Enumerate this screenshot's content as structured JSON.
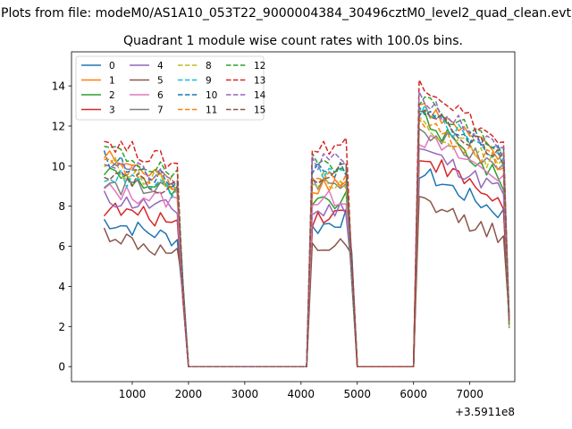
{
  "figure": {
    "suptitle": "Plots from file: modeM0/AS1A10_053T22_9000004384_30496cztM0_level2_quad_clean.evt",
    "x_offset_label": "+3.5911e8"
  },
  "chart_data": {
    "type": "line",
    "title": "Quadrant 1 module wise count rates with 100.0s bins.",
    "xlabel": "",
    "ylabel": "",
    "x_offset": 359110000,
    "xlim": [
      -80,
      7800
    ],
    "ylim": [
      -0.75,
      15.7
    ],
    "xticks": [
      1000,
      2000,
      3000,
      4000,
      5000,
      6000,
      7000
    ],
    "xtick_labels": [
      "1000",
      "2000",
      "3000",
      "4000",
      "5000",
      "6000",
      "7000"
    ],
    "yticks": [
      0,
      2,
      4,
      6,
      8,
      10,
      12,
      14
    ],
    "ytick_labels": [
      "0",
      "2",
      "4",
      "6",
      "8",
      "10",
      "12",
      "14"
    ],
    "legend_position": "top-left",
    "legend_columns": 4,
    "segments": [
      {
        "start": 500,
        "end": 1850,
        "drop_to": 3.8
      },
      {
        "start": 4150,
        "end": 4850,
        "drop_to": 5.0
      },
      {
        "start": 6050,
        "end": 7600,
        "drop_to": 2.2
      }
    ],
    "series": [
      {
        "name": "0",
        "color": "#1f77b4",
        "dash": "solid",
        "seg_levels": [
          [
            7.3,
            6.3
          ],
          [
            6.8,
            7.5
          ],
          [
            9.8,
            7.6
          ]
        ]
      },
      {
        "name": "1",
        "color": "#ff7f0e",
        "dash": "solid",
        "seg_levels": [
          [
            10.5,
            9.0
          ],
          [
            9.0,
            9.3
          ],
          [
            13.2,
            10.3
          ]
        ]
      },
      {
        "name": "2",
        "color": "#2ca02c",
        "dash": "solid",
        "seg_levels": [
          [
            9.8,
            8.6
          ],
          [
            8.0,
            8.3
          ],
          [
            12.6,
            9.2
          ]
        ]
      },
      {
        "name": "3",
        "color": "#d62728",
        "dash": "solid",
        "seg_levels": [
          [
            7.9,
            7.2
          ],
          [
            7.4,
            7.8
          ],
          [
            10.7,
            8.1
          ]
        ]
      },
      {
        "name": "4",
        "color": "#9467bd",
        "dash": "solid",
        "seg_levels": [
          [
            8.4,
            7.8
          ],
          [
            7.6,
            8.0
          ],
          [
            11.0,
            8.7
          ]
        ]
      },
      {
        "name": "5",
        "color": "#8c564b",
        "dash": "solid",
        "seg_levels": [
          [
            6.7,
            5.4
          ],
          [
            5.8,
            6.0
          ],
          [
            8.3,
            6.5
          ]
        ]
      },
      {
        "name": "6",
        "color": "#e377c2",
        "dash": "solid",
        "seg_levels": [
          [
            8.8,
            8.2
          ],
          [
            8.2,
            8.5
          ],
          [
            11.5,
            9.4
          ]
        ]
      },
      {
        "name": "7",
        "color": "#7f7f7f",
        "dash": "solid",
        "seg_levels": [
          [
            9.0,
            8.8
          ],
          [
            9.2,
            9.0
          ],
          [
            12.0,
            9.8
          ]
        ]
      },
      {
        "name": "8",
        "color": "#bcbd22",
        "dash": "dashed",
        "seg_levels": [
          [
            10.2,
            8.9
          ],
          [
            9.4,
            9.2
          ],
          [
            12.3,
            9.9
          ]
        ]
      },
      {
        "name": "9",
        "color": "#17becf",
        "dash": "dashed",
        "seg_levels": [
          [
            9.6,
            8.7
          ],
          [
            9.8,
            9.6
          ],
          [
            12.9,
            10.3
          ]
        ]
      },
      {
        "name": "10",
        "color": "#1f77b4",
        "dash": "dashed",
        "seg_levels": [
          [
            10.4,
            9.1
          ],
          [
            10.0,
            9.8
          ],
          [
            13.1,
            10.5
          ]
        ]
      },
      {
        "name": "11",
        "color": "#ff7f0e",
        "dash": "dashed",
        "seg_levels": [
          [
            10.1,
            8.9
          ],
          [
            9.3,
            9.4
          ],
          [
            12.2,
            10.0
          ]
        ]
      },
      {
        "name": "12",
        "color": "#2ca02c",
        "dash": "dashed",
        "seg_levels": [
          [
            10.9,
            9.4
          ],
          [
            10.2,
            10.1
          ],
          [
            13.5,
            10.8
          ]
        ]
      },
      {
        "name": "13",
        "color": "#d62728",
        "dash": "dashed",
        "seg_levels": [
          [
            11.3,
            10.0
          ],
          [
            10.8,
            11.2
          ],
          [
            14.5,
            11.0
          ]
        ]
      },
      {
        "name": "14",
        "color": "#9467bd",
        "dash": "dashed",
        "seg_levels": [
          [
            10.3,
            9.1
          ],
          [
            10.1,
            10.3
          ],
          [
            13.6,
            10.6
          ]
        ]
      },
      {
        "name": "15",
        "color": "#8c564b",
        "dash": "dashed",
        "seg_levels": [
          [
            9.8,
            8.8
          ],
          [
            9.5,
            9.9
          ],
          [
            13.0,
            10.4
          ]
        ]
      }
    ]
  }
}
